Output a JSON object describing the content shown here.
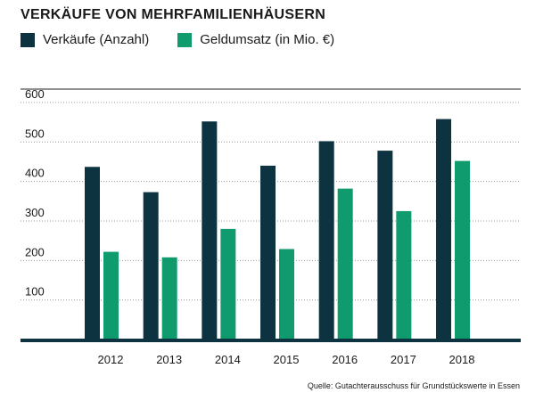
{
  "chart_data": {
    "type": "bar",
    "title": "VERKÄUFE VON MEHRFAMILIENHÄUSERN",
    "categories": [
      "2012",
      "2013",
      "2014",
      "2015",
      "2016",
      "2017",
      "2018"
    ],
    "series": [
      {
        "name": "Verkäufe (Anzahl)",
        "color": "#0e3340",
        "values": [
          437,
          373,
          552,
          440,
          502,
          478,
          558
        ]
      },
      {
        "name": "Geldumsatz (in Mio. €)",
        "color": "#0f9b6e",
        "values": [
          222,
          208,
          280,
          229,
          382,
          325,
          452
        ]
      }
    ],
    "y_ticks": [
      "100",
      "200",
      "300",
      "400",
      "500",
      "600"
    ],
    "ylim": [
      0,
      600
    ],
    "grid": true,
    "legend_position": "top-left",
    "source": "Quelle: Gutachterausschuss für Grundstückswerte in Essen"
  }
}
